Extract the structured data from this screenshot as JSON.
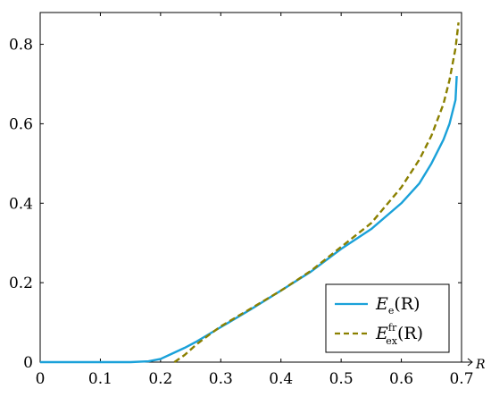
{
  "chart_data": {
    "type": "line",
    "title": "",
    "xlabel": "R",
    "ylabel": "",
    "xlim": [
      0,
      0.7
    ],
    "ylim": [
      0,
      0.88
    ],
    "grid": false,
    "legend_position": "bottom-right",
    "x_ticks": [
      "0",
      "0.1",
      "0.2",
      "0.3",
      "0.4",
      "0.5",
      "0.6",
      "0.7"
    ],
    "y_ticks": [
      "0",
      "0.2",
      "0.4",
      "0.6",
      "0.8"
    ],
    "x_tick_values": [
      0,
      0.1,
      0.2,
      0.3,
      0.4,
      0.5,
      0.6,
      0.7
    ],
    "y_tick_values": [
      0,
      0.2,
      0.4,
      0.6,
      0.8
    ],
    "series": [
      {
        "name": "E_e(R)",
        "legend": {
          "base": "E",
          "sub": "e",
          "sup": "",
          "arg": "(R)"
        },
        "color": "#1aa1d9",
        "style": "solid",
        "x": [
          0,
          0.05,
          0.1,
          0.15,
          0.18,
          0.2,
          0.22,
          0.24,
          0.26,
          0.28,
          0.3,
          0.35,
          0.4,
          0.45,
          0.5,
          0.55,
          0.6,
          0.63,
          0.65,
          0.67,
          0.68,
          0.69,
          0.692
        ],
        "y": [
          0,
          0,
          0,
          0,
          0.002,
          0.008,
          0.022,
          0.036,
          0.052,
          0.07,
          0.088,
          0.133,
          0.18,
          0.228,
          0.285,
          0.335,
          0.4,
          0.45,
          0.5,
          0.56,
          0.6,
          0.66,
          0.72
        ]
      },
      {
        "name": "E_ex^fr(R)",
        "legend": {
          "base": "E",
          "sub": "ex",
          "sup": "fr",
          "arg": "(R)"
        },
        "color": "#8b8000",
        "style": "dashed",
        "x": [
          0.223,
          0.24,
          0.26,
          0.28,
          0.3,
          0.35,
          0.4,
          0.45,
          0.5,
          0.55,
          0.6,
          0.63,
          0.65,
          0.67,
          0.68,
          0.69,
          0.695
        ],
        "y": [
          0,
          0.018,
          0.045,
          0.068,
          0.09,
          0.135,
          0.18,
          0.23,
          0.29,
          0.35,
          0.44,
          0.51,
          0.57,
          0.65,
          0.71,
          0.79,
          0.855
        ]
      }
    ]
  }
}
